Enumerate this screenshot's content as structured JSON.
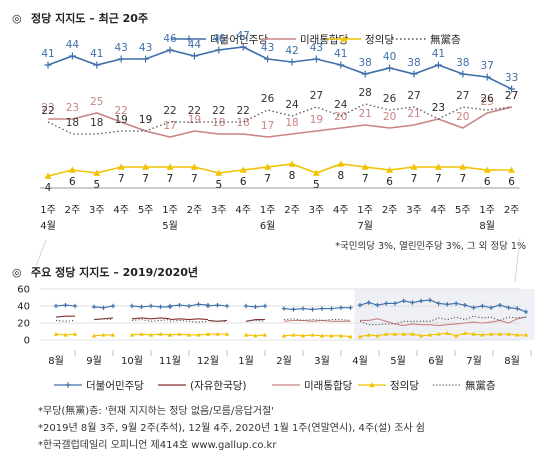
{
  "page": {
    "chart1_title": "정당 지지도 – 최근 20주",
    "chart1_footnote": "*국민의당 3%, 열린민주당 3%, 그 외 정당 1%",
    "chart2_title": "주요 정당 지지도 – 2019/2020년",
    "notes": [
      "*무당(無黨)층: '현재 지지하는 정당 없음/모름/응답거절'",
      "*2019년 8월 3주, 9월 2주(추석), 12월 4주, 2020년 1월 1주(연말연시), 4주(설) 조사 쉼",
      "*한국갤럽데일리 오피니언 제414호 www.gallup.co.kr"
    ]
  },
  "chart_data": [
    {
      "type": "line",
      "title": "정당 지지도 – 최근 20주",
      "x": [
        "1주",
        "2주",
        "3주",
        "4주",
        "5주",
        "1주",
        "2주",
        "3주",
        "4주",
        "1주",
        "2주",
        "3주",
        "4주",
        "1주",
        "2주",
        "3주",
        "4주",
        "5주",
        "1주",
        "2주"
      ],
      "month_labels": [
        {
          "index": 0,
          "label": "4월"
        },
        {
          "index": 5,
          "label": "5월"
        },
        {
          "index": 9,
          "label": "6월"
        },
        {
          "index": 13,
          "label": "7월"
        },
        {
          "index": 18,
          "label": "8월"
        }
      ],
      "series": [
        {
          "name": "더불어민주당",
          "color": "#3e6fa8",
          "marker": "plus",
          "values": [
            41,
            44,
            41,
            43,
            43,
            46,
            44,
            46,
            47,
            43,
            42,
            43,
            41,
            38,
            40,
            38,
            41,
            38,
            37,
            33
          ]
        },
        {
          "name": "미래통합당",
          "color": "#c98484",
          "marker": "none",
          "values": [
            23,
            23,
            25,
            22,
            19,
            17,
            19,
            18,
            18,
            17,
            18,
            19,
            20,
            21,
            20,
            21,
            23,
            20,
            25,
            27
          ]
        },
        {
          "name": "정의당",
          "color": "#f2c200",
          "marker": "triangle",
          "values": [
            4,
            6,
            5,
            7,
            7,
            7,
            7,
            5,
            6,
            7,
            8,
            5,
            8,
            7,
            6,
            7,
            7,
            7,
            6,
            6
          ]
        },
        {
          "name": "無黨층",
          "color": "#555555",
          "marker": "none",
          "dash": true,
          "values": [
            22,
            18,
            18,
            19,
            19,
            22,
            22,
            22,
            22,
            26,
            24,
            27,
            24,
            28,
            26,
            27,
            23,
            27,
            26,
            27
          ]
        }
      ],
      "ylim": [
        0,
        50
      ],
      "legend": "top-right",
      "grid": false,
      "footnote": "*국민의당 3%, 열린민주당 3%, 그 외 정당 1%"
    },
    {
      "type": "line",
      "title": "주요 정당 지지도 – 2019/2020년",
      "months": [
        "8월",
        "9월",
        "10월",
        "11월",
        "12월",
        "1월",
        "2월",
        "3월",
        "4월",
        "5월",
        "6월",
        "7월",
        "8월"
      ],
      "yticks": [
        0,
        20,
        40,
        60
      ],
      "ylim": [
        0,
        60
      ],
      "grid": true,
      "highlight": "최근 20주 구간 (2020년 4월~8월)",
      "legend": "bottom",
      "series": [
        {
          "name": "더불어민주당",
          "color": "#3e6fa8",
          "marker": "plus",
          "segments": [
            {
              "start": 0.0,
              "step": 0.25,
              "values": [
                40,
                41,
                40
              ]
            },
            {
              "start": 1.0,
              "step": 0.25,
              "values": [
                39,
                38,
                40
              ]
            },
            {
              "start": 2.0,
              "step": 0.25,
              "values": [
                40,
                39,
                40,
                39,
                39
              ]
            },
            {
              "start": 3.0,
              "step": 0.25,
              "values": [
                40,
                41,
                40,
                42,
                41
              ]
            },
            {
              "start": 4.0,
              "step": 0.25,
              "values": [
                40,
                41,
                40
              ]
            },
            {
              "start": 5.0,
              "step": 0.25,
              "values": [
                40,
                39,
                40
              ]
            },
            {
              "start": 6.0,
              "step": 0.25,
              "values": [
                37,
                36,
                37,
                36,
                37,
                37,
                38,
                38
              ]
            },
            {
              "start": 8.0,
              "step": 0.23,
              "values": [
                41,
                44,
                41,
                43,
                43,
                46,
                44,
                46,
                47,
                43,
                42,
                43,
                41,
                38,
                40,
                38,
                41,
                38,
                37,
                33
              ]
            }
          ]
        },
        {
          "name": "(자유한국당)",
          "color": "#8a3030",
          "marker": "none",
          "segments": [
            {
              "start": 0.0,
              "step": 0.25,
              "values": [
                27,
                28,
                28
              ]
            },
            {
              "start": 1.0,
              "step": 0.25,
              "values": [
                24,
                25,
                26
              ]
            },
            {
              "start": 2.0,
              "step": 0.25,
              "values": [
                25,
                26,
                25,
                26,
                25
              ]
            },
            {
              "start": 3.0,
              "step": 0.25,
              "values": [
                24,
                25,
                24,
                25,
                24
              ]
            },
            {
              "start": 4.0,
              "step": 0.25,
              "values": [
                23,
                22,
                23
              ]
            },
            {
              "start": 5.0,
              "step": 0.25,
              "values": [
                22,
                24,
                24
              ]
            }
          ]
        },
        {
          "name": "미래통합당",
          "color": "#c98484",
          "marker": "none",
          "segments": [
            {
              "start": 6.0,
              "step": 0.25,
              "values": [
                22,
                23,
                23,
                22,
                23,
                22,
                22,
                22
              ]
            },
            {
              "start": 8.0,
              "step": 0.23,
              "values": [
                23,
                23,
                25,
                22,
                19,
                17,
                19,
                18,
                18,
                17,
                18,
                19,
                20,
                21,
                20,
                21,
                23,
                20,
                25,
                27
              ]
            }
          ]
        },
        {
          "name": "정의당",
          "color": "#f2c200",
          "marker": "triangle",
          "segments": [
            {
              "start": 0.0,
              "step": 0.25,
              "values": [
                7,
                6,
                7
              ]
            },
            {
              "start": 1.0,
              "step": 0.25,
              "values": [
                5,
                6,
                6
              ]
            },
            {
              "start": 2.0,
              "step": 0.25,
              "values": [
                6,
                7,
                6,
                7,
                6
              ]
            },
            {
              "start": 3.0,
              "step": 0.25,
              "values": [
                6,
                7,
                6,
                6,
                7
              ]
            },
            {
              "start": 4.0,
              "step": 0.25,
              "values": [
                7,
                7,
                7
              ]
            },
            {
              "start": 5.0,
              "step": 0.25,
              "values": [
                6,
                5,
                6
              ]
            },
            {
              "start": 6.0,
              "step": 0.25,
              "values": [
                5,
                6,
                5,
                6,
                5,
                5,
                5,
                4
              ]
            },
            {
              "start": 8.0,
              "step": 0.23,
              "values": [
                4,
                6,
                5,
                7,
                7,
                7,
                7,
                5,
                6,
                7,
                8,
                5,
                8,
                7,
                6,
                7,
                7,
                7,
                6,
                6
              ]
            }
          ]
        },
        {
          "name": "無黨층",
          "color": "#555555",
          "marker": "none",
          "dash": true,
          "segments": [
            {
              "start": 0.0,
              "step": 0.25,
              "values": [
                23,
                22,
                23
              ]
            },
            {
              "start": 1.0,
              "step": 0.25,
              "values": [
                24,
                25,
                24
              ]
            },
            {
              "start": 2.0,
              "step": 0.25,
              "values": [
                23,
                24,
                22,
                23,
                24
              ]
            },
            {
              "start": 3.0,
              "step": 0.25,
              "values": [
                22,
                23,
                22,
                21,
                22
              ]
            },
            {
              "start": 4.0,
              "step": 0.25,
              "values": [
                23,
                22,
                22
              ]
            },
            {
              "start": 5.0,
              "step": 0.25,
              "values": [
                22,
                23,
                22
              ]
            },
            {
              "start": 6.0,
              "step": 0.25,
              "values": [
                24,
                25,
                23,
                24,
                23,
                24,
                24,
                23
              ]
            },
            {
              "start": 8.0,
              "step": 0.23,
              "values": [
                22,
                18,
                18,
                19,
                19,
                22,
                22,
                22,
                22,
                26,
                24,
                27,
                24,
                28,
                26,
                27,
                23,
                27,
                26,
                27
              ]
            }
          ]
        }
      ]
    }
  ]
}
